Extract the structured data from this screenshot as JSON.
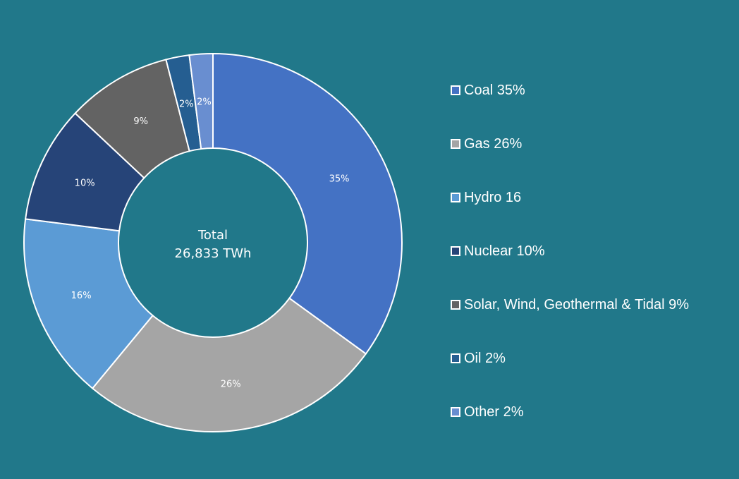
{
  "chart_data": {
    "type": "pie",
    "variant": "donut",
    "center_label": {
      "line1": "Total",
      "line2": "26,833 TWh"
    },
    "slices": [
      {
        "name": "Coal",
        "value": 35,
        "label": "35%",
        "color": "#4472c4"
      },
      {
        "name": "Gas",
        "value": 26,
        "label": "26%",
        "color": "#a5a5a5"
      },
      {
        "name": "Hydro",
        "value": 16,
        "label": "16%",
        "color": "#5b9bd5"
      },
      {
        "name": "Nuclear",
        "value": 10,
        "label": "10%",
        "color": "#264478"
      },
      {
        "name": "Solar, Wind, Geothermal & Tidal",
        "value": 9,
        "label": "9%",
        "color": "#636363"
      },
      {
        "name": "Oil",
        "value": 2,
        "label": "2%",
        "color": "#255e91"
      },
      {
        "name": "Other",
        "value": 2,
        "label": "2%",
        "color": "#698ed0"
      }
    ],
    "legend": {
      "placement": "right",
      "entries": [
        {
          "text": "Coal 35%",
          "color": "#4472c4"
        },
        {
          "text": "Gas 26%",
          "color": "#a5a5a5"
        },
        {
          "text": "Hydro 16",
          "color": "#5b9bd5"
        },
        {
          "text": "Nuclear 10%",
          "color": "#264478"
        },
        {
          "text": "Solar, Wind, Geothermal & Tidal 9%",
          "color": "#636363"
        },
        {
          "text": "Oil 2%",
          "color": "#255e91"
        },
        {
          "text": "Other 2%",
          "color": "#698ed0"
        }
      ]
    }
  }
}
